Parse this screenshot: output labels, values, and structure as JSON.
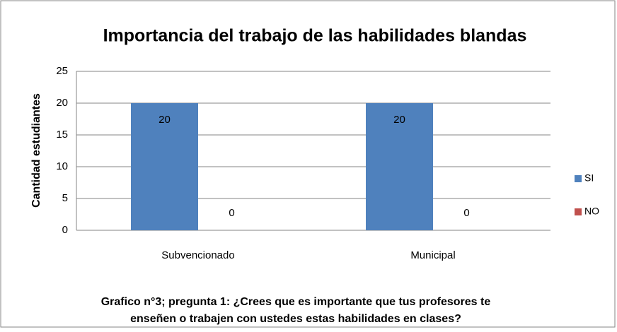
{
  "chart_data": {
    "type": "bar",
    "title": "Importancia del trabajo de las habilidades blandas",
    "ylabel": "Cantidad estudiantes",
    "categories": [
      "Subvencionado",
      "Municipal"
    ],
    "series": [
      {
        "name": "SI",
        "color": "#4f81bd",
        "values": [
          20,
          20
        ]
      },
      {
        "name": "NO",
        "color": "#c0504d",
        "values": [
          0,
          0
        ]
      }
    ],
    "ylim": [
      0,
      25
    ],
    "yticks": [
      0,
      5,
      10,
      15,
      20,
      25
    ],
    "grid": true,
    "legend": "right",
    "caption": [
      "Grafico n°3; pregunta 1: ¿Crees que es importante que tus profesores te",
      "enseñen o trabajen con ustedes estas habilidades en clases?"
    ]
  }
}
